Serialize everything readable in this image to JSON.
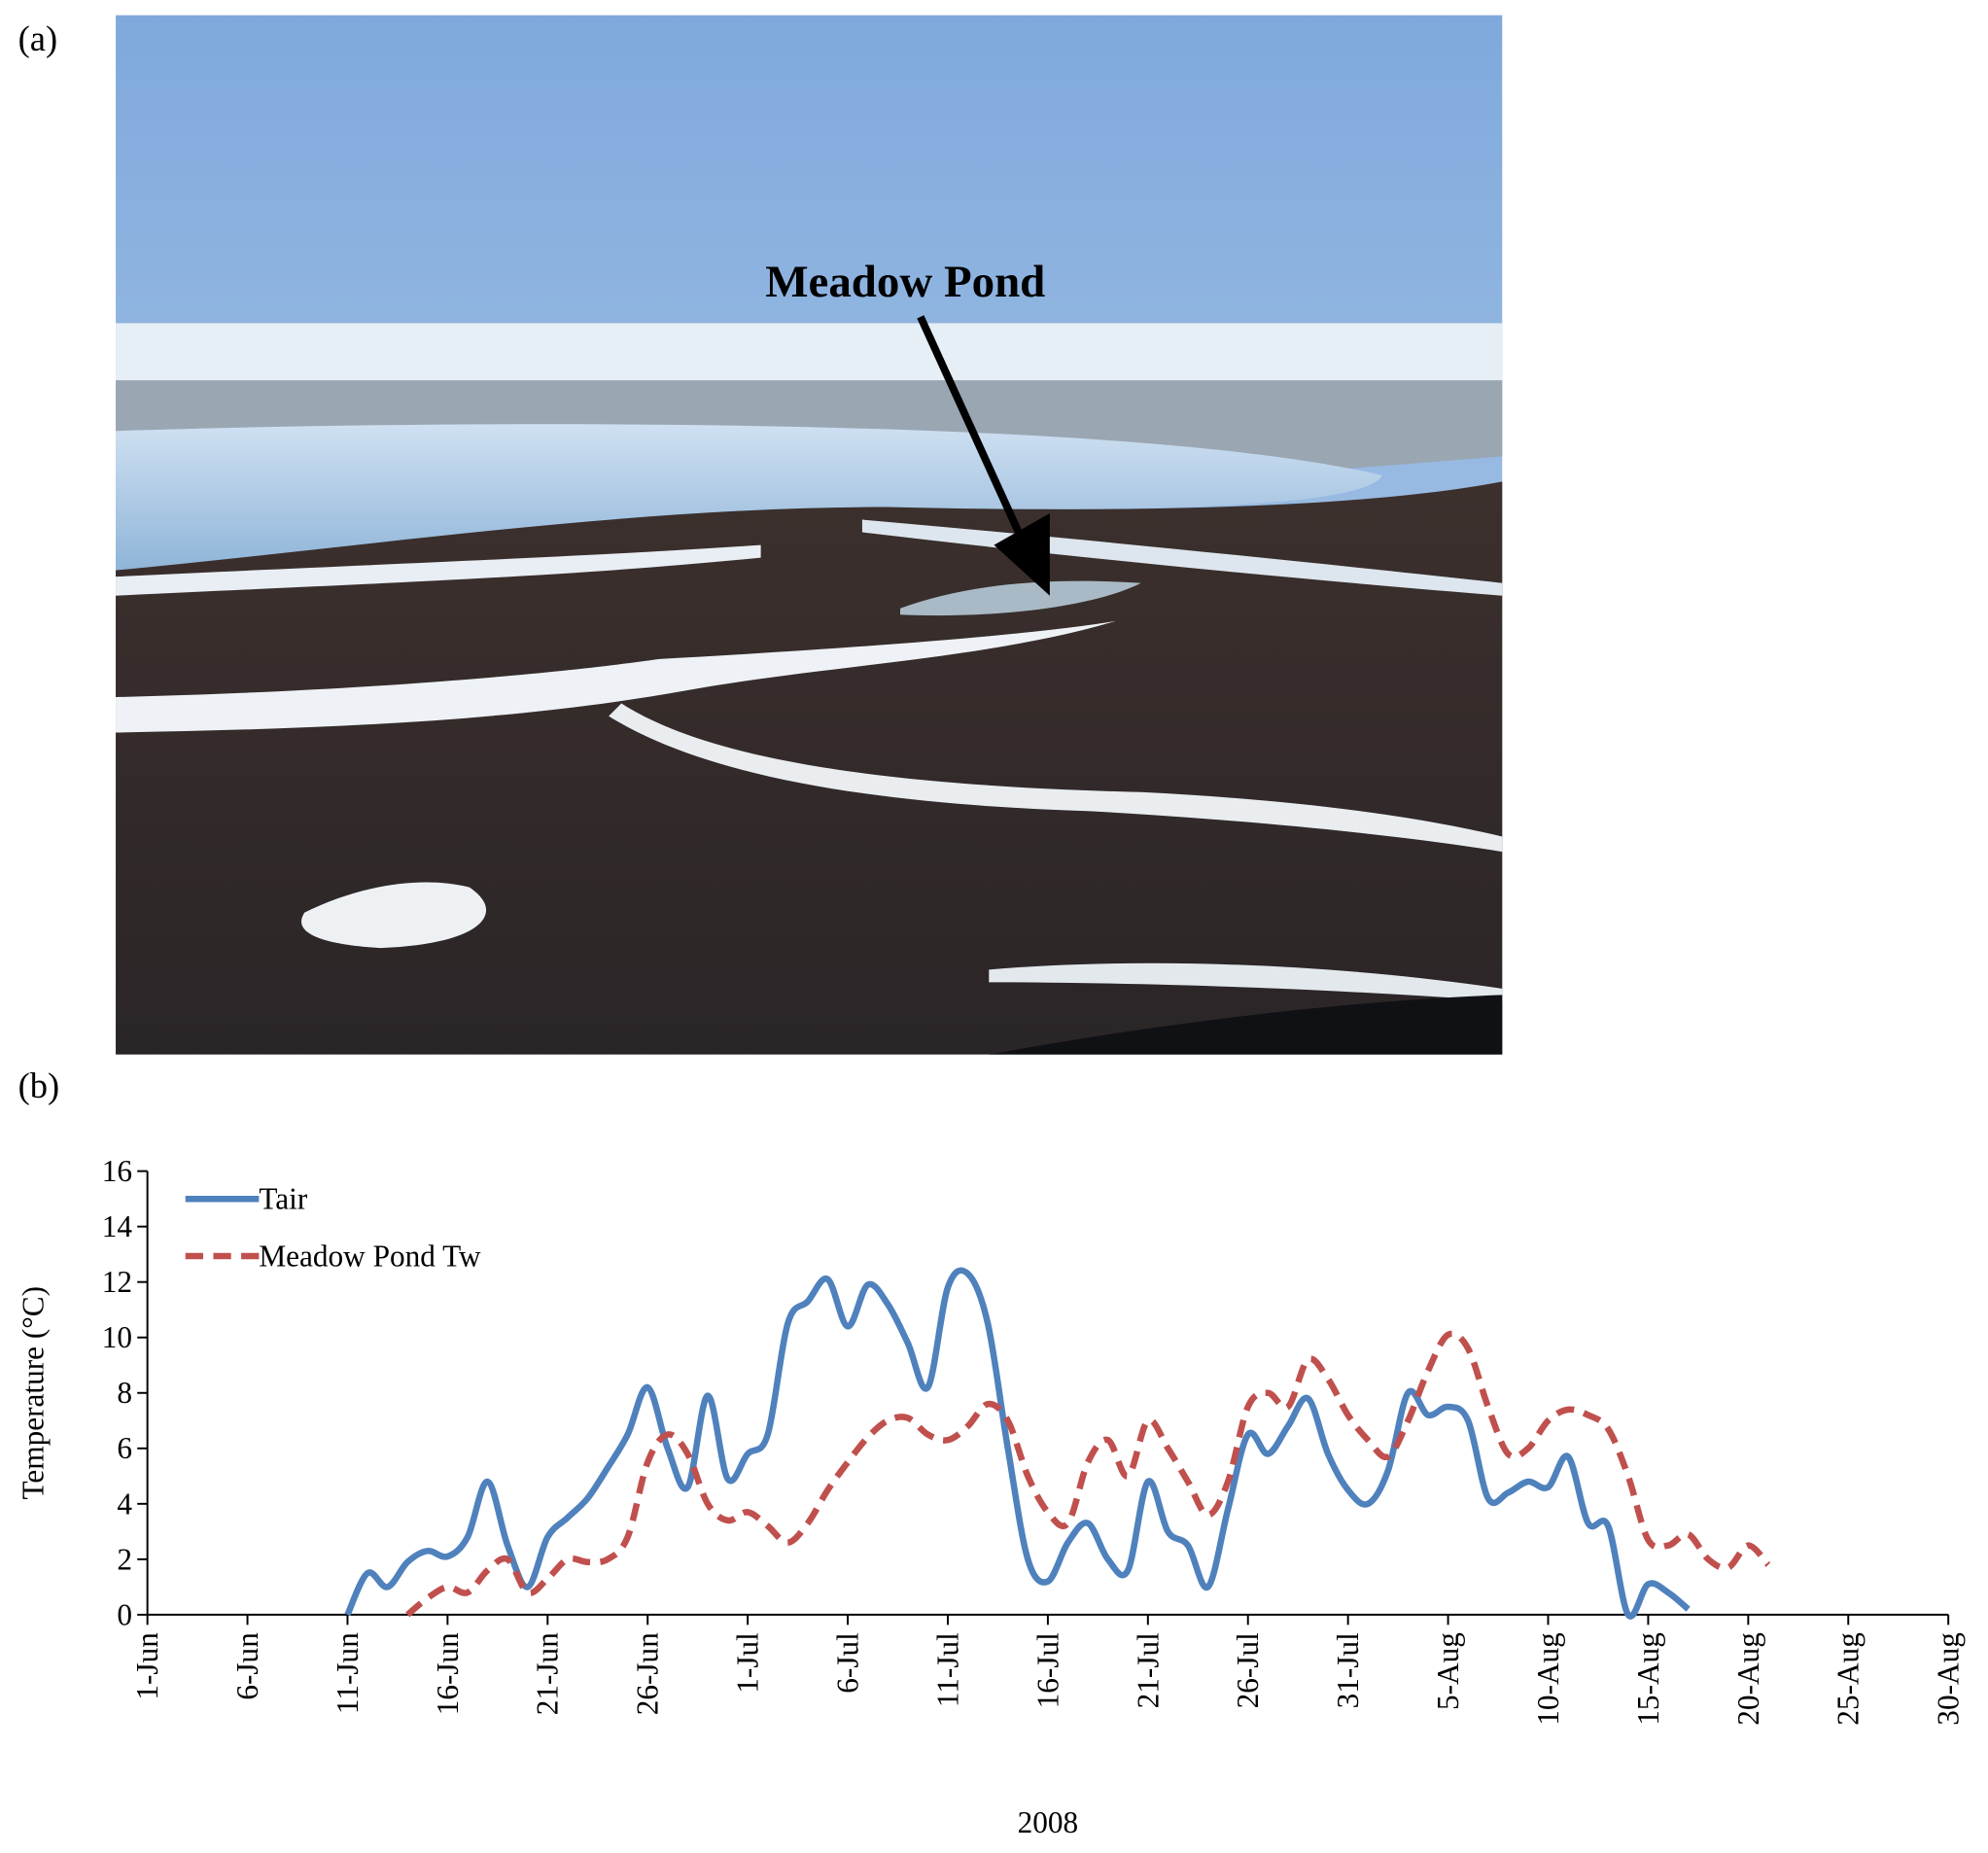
{
  "panel_a": {
    "label": "(a)",
    "annotation": "Meadow Pond"
  },
  "panel_b": {
    "label": "(b)"
  },
  "chart_data": {
    "type": "line",
    "xlabel": "2008",
    "ylabel": "Temperature (°C)",
    "x": [
      "2008-06-11",
      "2008-06-12",
      "2008-06-13",
      "2008-06-14",
      "2008-06-15",
      "2008-06-16",
      "2008-06-17",
      "2008-06-18",
      "2008-06-19",
      "2008-06-20",
      "2008-06-21",
      "2008-06-22",
      "2008-06-23",
      "2008-06-24",
      "2008-06-25",
      "2008-06-26",
      "2008-06-27",
      "2008-06-28",
      "2008-06-29",
      "2008-06-30",
      "2008-07-01",
      "2008-07-02",
      "2008-07-03",
      "2008-07-04",
      "2008-07-05",
      "2008-07-06",
      "2008-07-07",
      "2008-07-08",
      "2008-07-09",
      "2008-07-10",
      "2008-07-11",
      "2008-07-12",
      "2008-07-13",
      "2008-07-14",
      "2008-07-15",
      "2008-07-16",
      "2008-07-17",
      "2008-07-18",
      "2008-07-19",
      "2008-07-20",
      "2008-07-21",
      "2008-07-22",
      "2008-07-23",
      "2008-07-24",
      "2008-07-25",
      "2008-07-26",
      "2008-07-27",
      "2008-07-28",
      "2008-07-29",
      "2008-07-30",
      "2008-07-31",
      "2008-08-01",
      "2008-08-02",
      "2008-08-03",
      "2008-08-04",
      "2008-08-05",
      "2008-08-06",
      "2008-08-07",
      "2008-08-08",
      "2008-08-09",
      "2008-08-10",
      "2008-08-11",
      "2008-08-12",
      "2008-08-13",
      "2008-08-14",
      "2008-08-15",
      "2008-08-16",
      "2008-08-17",
      "2008-08-18",
      "2008-08-19",
      "2008-08-20",
      "2008-08-21"
    ],
    "series": [
      {
        "name": "Tair",
        "color": "#4f81bd",
        "dash": false,
        "values": [
          0,
          1.5,
          1.0,
          1.9,
          2.3,
          2.1,
          2.8,
          4.8,
          2.5,
          1.0,
          2.8,
          3.5,
          4.2,
          5.3,
          6.5,
          8.2,
          6.0,
          4.6,
          7.9,
          4.9,
          5.8,
          6.5,
          10.5,
          11.3,
          12.1,
          10.4,
          11.9,
          11.2,
          9.8,
          8.2,
          11.8,
          12.3,
          10.5,
          6.0,
          2.0,
          1.2,
          2.6,
          3.3,
          2.0,
          1.6,
          4.8,
          3.0,
          2.5,
          1.0,
          3.8,
          6.5,
          5.8,
          6.8,
          7.8,
          5.8,
          4.5,
          4.0,
          5.2,
          8.0,
          7.2,
          7.5,
          7.0,
          4.2,
          4.4,
          4.8,
          4.6,
          5.7,
          3.3,
          3.2,
          0,
          1.1,
          0.8,
          0.2,
          null,
          null,
          null,
          null
        ]
      },
      {
        "name": "Meadow Pond Tw",
        "color": "#c0504d",
        "dash": true,
        "values": [
          null,
          null,
          null,
          0,
          0.6,
          1.0,
          0.8,
          1.6,
          2.0,
          0.8,
          1.3,
          2.0,
          1.9,
          2.0,
          2.8,
          5.5,
          6.5,
          5.8,
          4.0,
          3.4,
          3.7,
          3.2,
          2.6,
          3.3,
          4.5,
          5.5,
          6.4,
          7.0,
          7.1,
          6.5,
          6.3,
          6.8,
          7.6,
          7.0,
          5.0,
          3.7,
          3.3,
          5.5,
          6.3,
          5.0,
          7.0,
          6.0,
          4.8,
          3.6,
          4.8,
          7.5,
          8.0,
          7.5,
          9.2,
          8.5,
          7.2,
          6.3,
          5.7,
          7.0,
          8.8,
          10.1,
          9.6,
          7.5,
          5.8,
          6.0,
          7.0,
          7.4,
          7.2,
          6.7,
          5.0,
          2.7,
          2.5,
          2.9,
          2.0,
          1.7,
          2.5,
          1.8
        ]
      }
    ],
    "xlim": [
      "2008-06-01",
      "2008-08-30"
    ],
    "xticks": [
      {
        "value": "2008-06-01",
        "label": "1-Jun"
      },
      {
        "value": "2008-06-06",
        "label": "6-Jun"
      },
      {
        "value": "2008-06-11",
        "label": "11-Jun"
      },
      {
        "value": "2008-06-16",
        "label": "16-Jun"
      },
      {
        "value": "2008-06-21",
        "label": "21-Jun"
      },
      {
        "value": "2008-06-26",
        "label": "26-Jun"
      },
      {
        "value": "2008-07-01",
        "label": "1-Jul"
      },
      {
        "value": "2008-07-06",
        "label": "6-Jul"
      },
      {
        "value": "2008-07-11",
        "label": "11-Jul"
      },
      {
        "value": "2008-07-16",
        "label": "16-Jul"
      },
      {
        "value": "2008-07-21",
        "label": "21-Jul"
      },
      {
        "value": "2008-07-26",
        "label": "26-Jul"
      },
      {
        "value": "2008-07-31",
        "label": "31-Jul"
      },
      {
        "value": "2008-08-05",
        "label": "5-Aug"
      },
      {
        "value": "2008-08-10",
        "label": "10-Aug"
      },
      {
        "value": "2008-08-15",
        "label": "15-Aug"
      },
      {
        "value": "2008-08-20",
        "label": "20-Aug"
      },
      {
        "value": "2008-08-25",
        "label": "25-Aug"
      },
      {
        "value": "2008-08-30",
        "label": "30-Aug"
      }
    ],
    "ylim": [
      0,
      16
    ],
    "yticks": [
      0,
      2,
      4,
      6,
      8,
      10,
      12,
      14,
      16
    ],
    "grid": false,
    "legend": "upper-left"
  }
}
